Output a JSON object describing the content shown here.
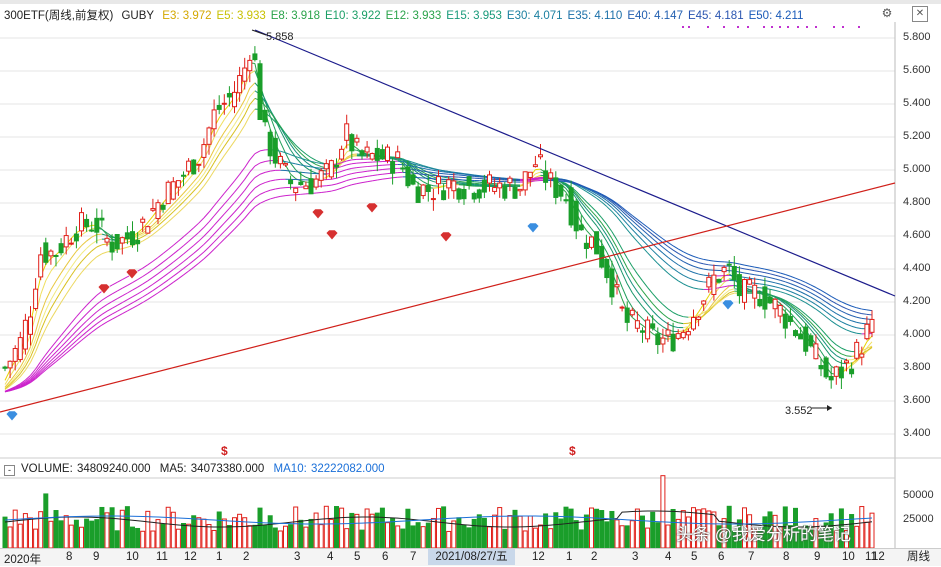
{
  "info": {
    "symbol": "300ETF",
    "qualifier": "(周线,前复权)",
    "indicator": "GUBY",
    "items": [
      {
        "label": "E3:",
        "value": "3.972",
        "color": "#d4a800"
      },
      {
        "label": "E5:",
        "value": "3.933",
        "color": "#c8c000"
      },
      {
        "label": "E8:",
        "value": "3.918",
        "color": "#2aa34a"
      },
      {
        "label": "E10:",
        "value": "3.922",
        "color": "#1a9e66"
      },
      {
        "label": "E12:",
        "value": "3.933",
        "color": "#2aa34a"
      },
      {
        "label": "E15:",
        "value": "3.953",
        "color": "#179a7a"
      },
      {
        "label": "E30:",
        "value": "4.071",
        "color": "#1a7fa0"
      },
      {
        "label": "E35:",
        "value": "4.110",
        "color": "#1a6fa8"
      },
      {
        "label": "E40:",
        "value": "4.147",
        "color": "#225fb0"
      },
      {
        "label": "E45:",
        "value": "4.181",
        "color": "#2a55b0"
      },
      {
        "label": "E50:",
        "value": "4.211",
        "color": "#1a5ab8"
      }
    ]
  },
  "volume": {
    "label": "VOLUME:",
    "volume_value": "34809240.000",
    "ma5_label": "MA5:",
    "ma5_value": "34073380.000",
    "ma10_label": "MA10:",
    "ma10_value": "32222082.000",
    "toggle": "-"
  },
  "price_axis": [
    "5.800",
    "5.600",
    "5.400",
    "5.200",
    "5.000",
    "4.800",
    "4.600",
    "4.400",
    "4.200",
    "4.000",
    "3.800",
    "3.600",
    "3.400"
  ],
  "volume_axis": [
    "50000",
    "25000"
  ],
  "x_axis": {
    "labels": [
      "2020年",
      "8",
      "9",
      "10",
      "11",
      "12",
      "1",
      "2",
      "3",
      "4",
      "5",
      "6",
      "7",
      "8",
      "12",
      "1",
      "2",
      "3",
      "4",
      "5",
      "6",
      "7",
      "8",
      "9",
      "10",
      "11",
      "12"
    ],
    "cursor_date": "2021/08/27/五",
    "period": "周线"
  },
  "annotations": {
    "high": "5.858",
    "low": "3.552",
    "signal": "$"
  },
  "watermark": "头条 @我爱分析的笔记",
  "colors": {
    "up": "#e0201a",
    "down": "#1a9e2a",
    "trend_down": "#1c1c8c",
    "trend_up": "#d0201a",
    "ribbon": "#cc22cc"
  }
}
